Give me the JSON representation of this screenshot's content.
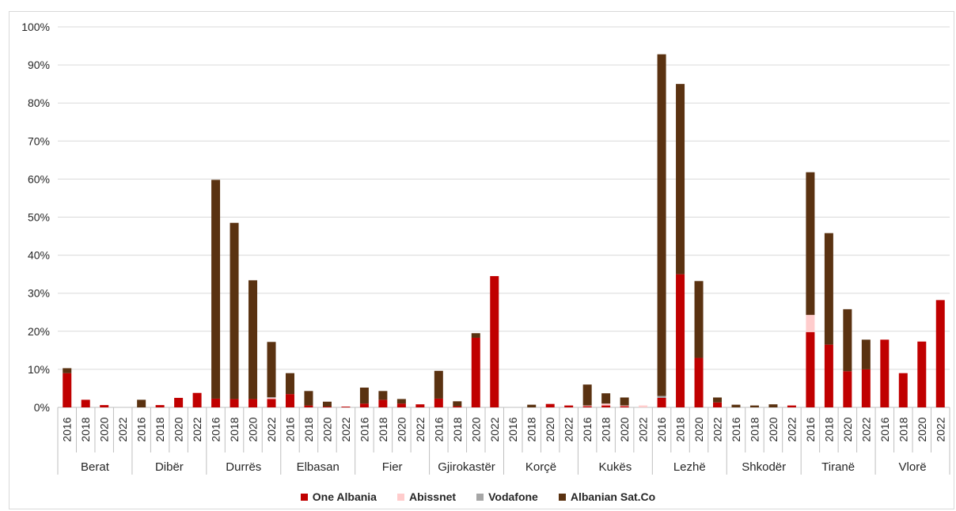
{
  "chart_data": {
    "type": "bar",
    "stacked": true,
    "y_axis": {
      "min": 0,
      "max": 100,
      "step": 10,
      "format": "percent",
      "gridlines": true
    },
    "years": [
      "2016",
      "2018",
      "2020",
      "2022"
    ],
    "groups": [
      "Berat",
      "Dibër",
      "Durrës",
      "Elbasan",
      "Fier",
      "Gjirokastër",
      "Korçë",
      "Kukës",
      "Lezhë",
      "Shkodër",
      "Tiranë",
      "Vlorë"
    ],
    "series": [
      {
        "name": "One Albania",
        "color": "#c00000",
        "values": [
          [
            9,
            2,
            0.6,
            0
          ],
          [
            0,
            0.6,
            2.5,
            3.8
          ],
          [
            2.3,
            2.2,
            2.2,
            2.2
          ],
          [
            3.5,
            0.5,
            0.2,
            0.2
          ],
          [
            1,
            2,
            1,
            0.8
          ],
          [
            2.3,
            0.3,
            18.3,
            34.5
          ],
          [
            0,
            0,
            0.9,
            0.5
          ],
          [
            0.3,
            0.5,
            0.3,
            0
          ],
          [
            2.5,
            35,
            13,
            1.3
          ],
          [
            0,
            0,
            0,
            0.5
          ],
          [
            19.8,
            16.5,
            9.5,
            10
          ],
          [
            17.8,
            9,
            17.3,
            28.2
          ]
        ]
      },
      {
        "name": "Abissnet",
        "color": "#ffcccc",
        "values": [
          [
            0,
            0,
            0,
            0
          ],
          [
            0,
            0,
            0,
            0
          ],
          [
            0,
            0,
            0,
            0.3
          ],
          [
            0,
            0,
            0,
            0
          ],
          [
            0,
            0,
            0,
            0
          ],
          [
            0,
            0,
            0,
            0
          ],
          [
            0,
            0,
            0,
            0
          ],
          [
            0.2,
            0.5,
            0.2,
            0.5
          ],
          [
            0,
            0,
            0,
            0
          ],
          [
            0,
            0,
            0,
            0
          ],
          [
            4.5,
            0,
            0,
            0
          ],
          [
            0,
            0,
            0,
            0
          ]
        ]
      },
      {
        "name": "Vodafone",
        "color": "#a6a6a6",
        "values": [
          [
            0,
            0,
            0,
            0
          ],
          [
            0,
            0,
            0,
            0
          ],
          [
            0,
            0,
            0,
            0.2
          ],
          [
            0,
            0,
            0,
            0
          ],
          [
            0,
            0,
            0,
            0
          ],
          [
            0,
            0,
            0,
            0
          ],
          [
            0,
            0,
            0,
            0
          ],
          [
            0,
            0,
            0,
            0
          ],
          [
            0.5,
            0,
            0,
            0
          ],
          [
            0,
            0,
            0,
            0
          ],
          [
            0,
            0,
            0,
            0
          ],
          [
            0,
            0,
            0,
            0
          ]
        ]
      },
      {
        "name": "Albanian Sat.Co",
        "color": "#5a3211",
        "values": [
          [
            1.3,
            0,
            0,
            0
          ],
          [
            2,
            0,
            0,
            0
          ],
          [
            57.5,
            46.3,
            31.2,
            14.5
          ],
          [
            5.5,
            3.8,
            1.3,
            0
          ],
          [
            4.2,
            2.3,
            1.2,
            0
          ],
          [
            7.3,
            1.3,
            1.2,
            0
          ],
          [
            0,
            0.7,
            0,
            0
          ],
          [
            5.5,
            2.7,
            2.1,
            0
          ],
          [
            89.8,
            50,
            20.2,
            1.3
          ],
          [
            0.7,
            0.5,
            0.8,
            0
          ],
          [
            37.5,
            29.3,
            16.3,
            7.8
          ],
          [
            0,
            0,
            0,
            0
          ]
        ]
      }
    ]
  }
}
